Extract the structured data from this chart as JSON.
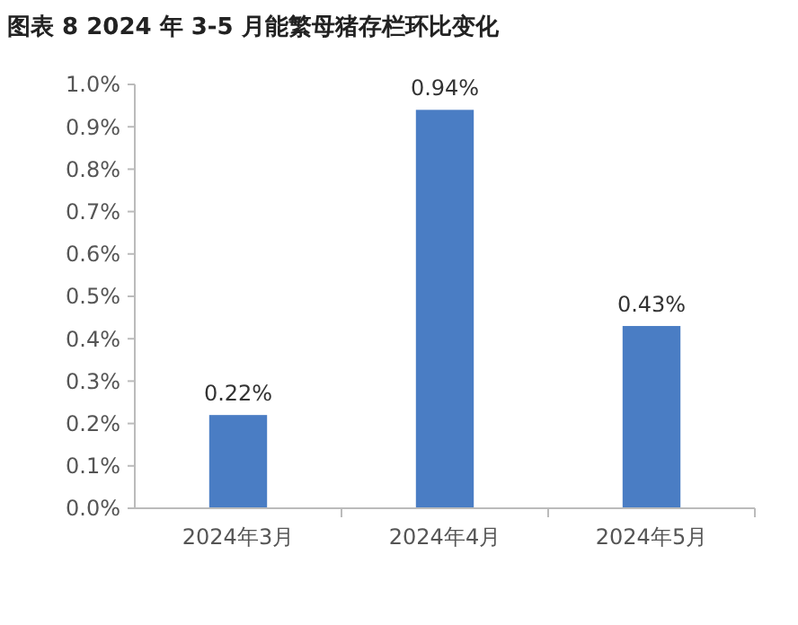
{
  "chart_data": {
    "type": "bar",
    "title": "图表 8 2024 年 3-5 月能繁母猪存栏环比变化",
    "categories": [
      "2024年3月",
      "2024年4月",
      "2024年5月"
    ],
    "values": [
      0.22,
      0.94,
      0.43
    ],
    "value_labels": [
      "0.22%",
      "0.94%",
      "0.43%"
    ],
    "color": "#4a7dc4",
    "ylim": [
      0,
      1
    ],
    "yticks": [
      {
        "value": 0,
        "label": "0.0%"
      },
      {
        "value": 0.1,
        "label": "0.1%"
      },
      {
        "value": 0.2,
        "label": "0.2%"
      },
      {
        "value": 0.3,
        "label": "0.3%"
      },
      {
        "value": 0.4,
        "label": "0.4%"
      },
      {
        "value": 0.5,
        "label": "0.5%"
      },
      {
        "value": 0.6,
        "label": "0.6%"
      },
      {
        "value": 0.7,
        "label": "0.7%"
      },
      {
        "value": 0.8,
        "label": "0.8%"
      },
      {
        "value": 0.9,
        "label": "0.9%"
      },
      {
        "value": 1,
        "label": "1.0%"
      }
    ]
  }
}
